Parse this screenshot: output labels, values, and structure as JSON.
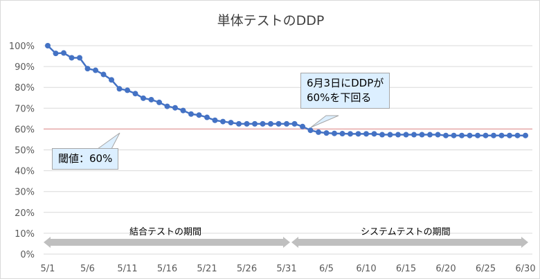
{
  "chart_data": {
    "type": "line",
    "title": "単体テストのDDP",
    "xlabel": "",
    "ylabel": "",
    "ylim": [
      0,
      1
    ],
    "yticks": [
      "0%",
      "10%",
      "20%",
      "30%",
      "40%",
      "50%",
      "60%",
      "70%",
      "80%",
      "90%",
      "100%"
    ],
    "xtick_labels": [
      "5/1",
      "5/6",
      "5/11",
      "5/16",
      "5/21",
      "5/26",
      "5/31",
      "6/5",
      "6/10",
      "6/15",
      "6/20",
      "6/25",
      "6/30"
    ],
    "grid": true,
    "categories": [
      "5/1",
      "5/2",
      "5/3",
      "5/4",
      "5/5",
      "5/6",
      "5/7",
      "5/8",
      "5/9",
      "5/10",
      "5/11",
      "5/12",
      "5/13",
      "5/14",
      "5/15",
      "5/16",
      "5/17",
      "5/18",
      "5/19",
      "5/20",
      "5/21",
      "5/22",
      "5/23",
      "5/24",
      "5/25",
      "5/26",
      "5/27",
      "5/28",
      "5/29",
      "5/30",
      "5/31",
      "6/1",
      "6/2",
      "6/3",
      "6/4",
      "6/5",
      "6/6",
      "6/7",
      "6/8",
      "6/9",
      "6/10",
      "6/11",
      "6/12",
      "6/13",
      "6/14",
      "6/15",
      "6/16",
      "6/17",
      "6/18",
      "6/19",
      "6/20",
      "6/21",
      "6/22",
      "6/23",
      "6/24",
      "6/25",
      "6/26",
      "6/27",
      "6/28",
      "6/29",
      "6/30"
    ],
    "values": [
      1.0,
      0.963,
      0.965,
      0.942,
      0.942,
      0.89,
      0.882,
      0.862,
      0.836,
      0.793,
      0.786,
      0.77,
      0.748,
      0.741,
      0.728,
      0.709,
      0.702,
      0.689,
      0.672,
      0.667,
      0.656,
      0.642,
      0.636,
      0.631,
      0.625,
      0.625,
      0.625,
      0.625,
      0.625,
      0.625,
      0.625,
      0.625,
      0.612,
      0.594,
      0.585,
      0.581,
      0.579,
      0.578,
      0.577,
      0.577,
      0.577,
      0.577,
      0.573,
      0.573,
      0.573,
      0.573,
      0.573,
      0.573,
      0.573,
      0.573,
      0.569,
      0.569,
      0.569,
      0.569,
      0.569,
      0.569,
      0.569,
      0.569,
      0.569,
      0.569,
      0.569
    ],
    "series_color": "#4472c4",
    "threshold": {
      "value": 0.6,
      "color": "#e6a7a7"
    },
    "annotations": {
      "threshold_label": "閾値：60%",
      "crossing_label_line1": "6月3日にDDPが",
      "crossing_label_line2": "60%を下回る"
    },
    "periods": [
      {
        "label": "結合テストの期間",
        "from": "5/1",
        "to": "5/31"
      },
      {
        "label": "システムテストの期間",
        "from": "6/1",
        "to": "6/30"
      }
    ]
  }
}
